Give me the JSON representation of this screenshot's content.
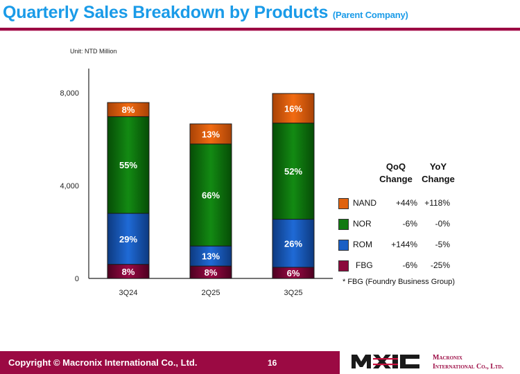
{
  "header": {
    "title": "Quarterly Sales Breakdown by Products",
    "subtitle": "(Parent Company)"
  },
  "unit_label": "Unit: NTD Million",
  "chart_data": {
    "type": "bar",
    "stacked": true,
    "title": "Quarterly Sales Breakdown by Products",
    "xlabel": "",
    "ylabel": "NTD Million",
    "ylim": [
      0,
      8000
    ],
    "yticks": [
      0,
      4000,
      8000
    ],
    "ytick_labels": [
      "0",
      "4,000",
      "8,000"
    ],
    "categories": [
      "3Q24",
      "2Q25",
      "3Q25"
    ],
    "totals": [
      7580,
      6660,
      7970
    ],
    "series": [
      {
        "name": "FBG",
        "color": "#8b0a3c",
        "share_pct": [
          8,
          8,
          6
        ],
        "labels": [
          "8%",
          "8%",
          "6%"
        ]
      },
      {
        "name": "ROM",
        "color": "#1a5fc4",
        "share_pct": [
          29,
          13,
          26
        ],
        "labels": [
          "29%",
          "13%",
          "26%"
        ]
      },
      {
        "name": "NOR",
        "color": "#127a12",
        "share_pct": [
          55,
          66,
          52
        ],
        "labels": [
          "55%",
          "66%",
          "52%"
        ]
      },
      {
        "name": "NAND",
        "color": "#e0620e",
        "share_pct": [
          8,
          13,
          16
        ],
        "labels": [
          "8%",
          "13%",
          "16%"
        ]
      }
    ],
    "grid": false,
    "legend_position": "right"
  },
  "legend": {
    "qoq_header": "QoQ",
    "qoq_header2": "Change",
    "yoy_header": "YoY",
    "yoy_header2": "Change",
    "rows": [
      {
        "name": "NAND",
        "color": "#e0620e",
        "qoq": "+44%",
        "yoy": "+118%"
      },
      {
        "name": "NOR",
        "color": "#127a12",
        "qoq": "-6%",
        "yoy": "-0%"
      },
      {
        "name": "ROM",
        "color": "#1a5fc4",
        "qoq": "+144%",
        "yoy": "-5%"
      },
      {
        "name": "FBG",
        "color": "#8b0a3c",
        "qoq": "-6%",
        "yoy": "-25%"
      }
    ],
    "footnote": "* FBG (Foundry Business Group)"
  },
  "footer": {
    "copyright": "Copyright © Macronix International Co., Ltd.",
    "page_number": "16",
    "logo_text": "MXIC",
    "company_line1": "Macronix",
    "company_line2": "International Co., Ltd."
  }
}
